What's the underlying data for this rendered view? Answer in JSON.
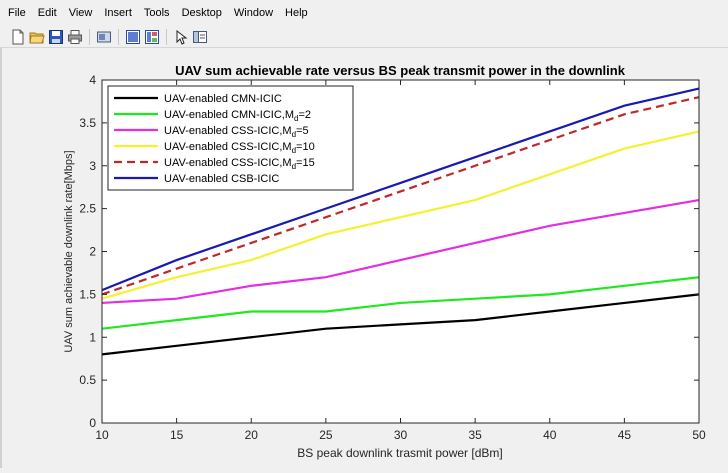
{
  "menubar": {
    "items": [
      "File",
      "Edit",
      "View",
      "Insert",
      "Tools",
      "Desktop",
      "Window",
      "Help"
    ]
  },
  "toolbar": {
    "buttons": [
      "new-figure-icon",
      "open-file-icon",
      "save-icon",
      "print-icon",
      "link-plot-icon",
      "hide-plot-tools-icon",
      "show-plot-tools-icon",
      "edit-plot-arrow-icon",
      "property-inspector-icon"
    ]
  },
  "chart_data": {
    "type": "line",
    "title": "UAV sum achievable rate versus BS peak transmit power in the downlink",
    "xlabel": "BS peak downlink trasmit power [dBm]",
    "ylabel": "UAV sum achievable downlink rate[Mbps]",
    "xlim": [
      10,
      50
    ],
    "ylim": [
      0,
      4
    ],
    "xticks": [
      "10",
      "15",
      "20",
      "25",
      "30",
      "35",
      "40",
      "45",
      "50"
    ],
    "yticks": [
      "0",
      "0.5",
      "1",
      "1.5",
      "2",
      "2.5",
      "3",
      "3.5",
      "4"
    ],
    "grid": false,
    "legend_position": "top-left",
    "x": [
      10,
      15,
      20,
      25,
      30,
      35,
      40,
      45,
      50
    ],
    "series": [
      {
        "name": "UAV-enabled CMN-ICIC",
        "sub": "",
        "after": "",
        "color": "#000000",
        "dash": "",
        "values": [
          0.8,
          0.9,
          1.0,
          1.1,
          1.15,
          1.2,
          1.3,
          1.4,
          1.5
        ]
      },
      {
        "name": "UAV-enabled CMN-ICIC,M",
        "sub": "d",
        "after": "=2",
        "color": "#1fe81f",
        "dash": "",
        "values": [
          1.1,
          1.2,
          1.3,
          1.3,
          1.4,
          1.45,
          1.5,
          1.6,
          1.7
        ]
      },
      {
        "name": "UAV-enabled CSS-ICIC,M",
        "sub": "d",
        "after": "=5",
        "color": "#e32ee3",
        "dash": "",
        "values": [
          1.4,
          1.45,
          1.6,
          1.7,
          1.9,
          2.1,
          2.3,
          2.45,
          2.6
        ]
      },
      {
        "name": "UAV-enabled CSS-ICIC,M",
        "sub": "d",
        "after": "=10",
        "color": "#f2f230",
        "dash": "",
        "values": [
          1.45,
          1.7,
          1.9,
          2.2,
          2.4,
          2.6,
          2.9,
          3.2,
          3.4
        ]
      },
      {
        "name": "UAV-enabled CSS-ICIC,M",
        "sub": "d",
        "after": "=15",
        "color": "#c02828",
        "dash": "8,5",
        "values": [
          1.5,
          1.8,
          2.1,
          2.4,
          2.7,
          3.0,
          3.3,
          3.6,
          3.8
        ]
      },
      {
        "name": "UAV-enabled CSB-ICIC",
        "sub": "",
        "after": "",
        "color": "#1a1ab0",
        "dash": "",
        "values": [
          1.55,
          1.9,
          2.2,
          2.5,
          2.8,
          3.1,
          3.4,
          3.7,
          3.9
        ]
      }
    ]
  }
}
